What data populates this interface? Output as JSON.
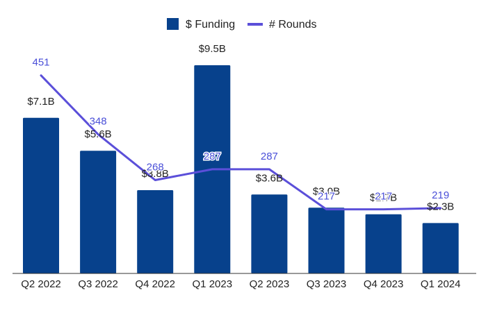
{
  "chart_data": {
    "type": "bar",
    "title": "",
    "xlabel": "",
    "ylabel": "",
    "categories": [
      "Q2 2022",
      "Q3 2022",
      "Q4 2022",
      "Q1 2023",
      "Q2 2023",
      "Q3 2023",
      "Q4 2023",
      "Q1 2024"
    ],
    "series": [
      {
        "name": "$ Funding",
        "kind": "bar",
        "values": [
          7.1,
          5.6,
          3.8,
          9.5,
          3.6,
          3.0,
          2.7,
          2.3
        ],
        "labels": [
          "$7.1B",
          "$5.6B",
          "$3.8B",
          "$9.5B",
          "$3.6B",
          "$3.0B",
          "$2.7B",
          "$2.3B"
        ],
        "color": "#07418c"
      },
      {
        "name": "# Rounds",
        "kind": "line",
        "values": [
          451,
          348,
          268,
          287,
          287,
          217,
          217,
          219
        ],
        "labels": [
          "451",
          "348",
          "268",
          "287",
          "287",
          "217",
          "217",
          "219"
        ],
        "color": "#5b4fd9"
      }
    ],
    "ylim_bars": [
      0,
      12
    ],
    "ylim_line": [
      0,
      500
    ],
    "grid": false,
    "legend": "top-center"
  }
}
